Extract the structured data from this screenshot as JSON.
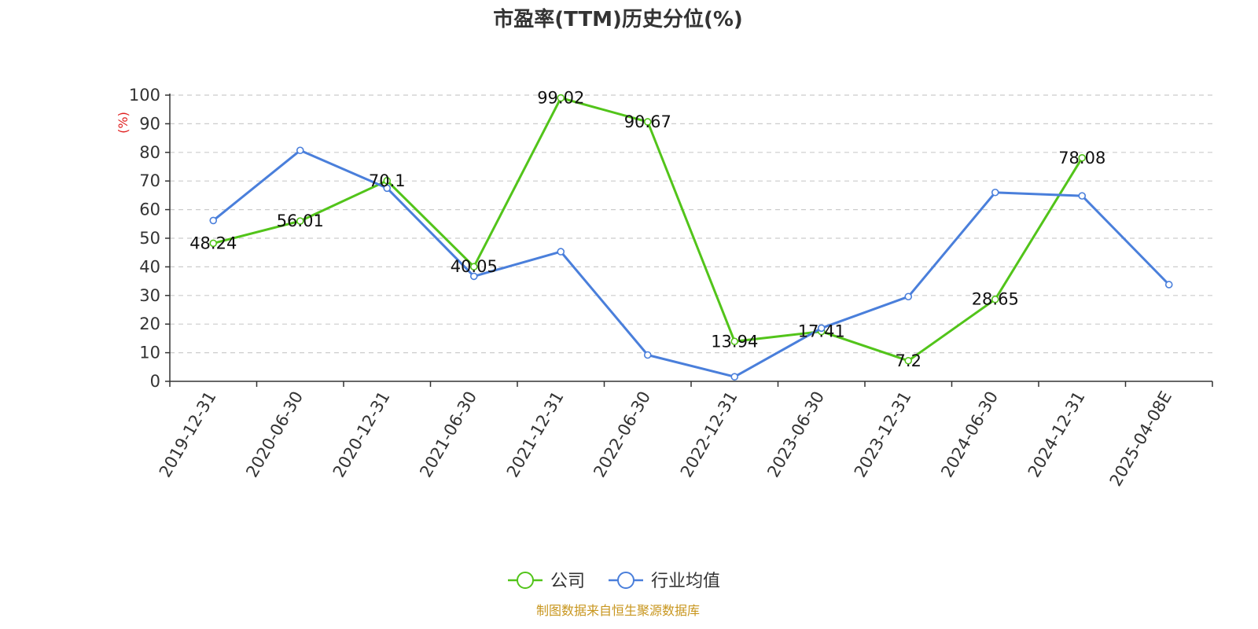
{
  "chart_data": {
    "type": "line",
    "title": "市盈率(TTM)历史分位(%)",
    "ylabel": "(%)",
    "ylim": [
      0,
      100
    ],
    "yticks": [
      0,
      10,
      20,
      30,
      40,
      50,
      60,
      70,
      80,
      90,
      100
    ],
    "grid": true,
    "legend_position": "bottom",
    "categories": [
      "2019-12-31",
      "2020-06-30",
      "2020-12-31",
      "2021-06-30",
      "2021-12-31",
      "2022-06-30",
      "2022-12-31",
      "2023-06-30",
      "2023-12-31",
      "2024-06-30",
      "2024-12-31",
      "2025-04-08E"
    ],
    "series": [
      {
        "name": "公司",
        "color": "#52c41a",
        "values": [
          48.24,
          56.01,
          70.1,
          40.05,
          99.02,
          90.67,
          13.94,
          17.41,
          7.2,
          28.65,
          78.08,
          null
        ],
        "labels": [
          "48.24",
          "56.01",
          "70.1",
          "40.05",
          "99.02",
          "90.67",
          "13.94",
          "17.41",
          "7.2",
          "28.65",
          "78.08",
          ""
        ]
      },
      {
        "name": "行业均值",
        "color": "#4a7fdb",
        "values": [
          56.2,
          80.7,
          67.5,
          36.7,
          45.3,
          9.2,
          1.6,
          18.6,
          29.6,
          66.0,
          64.8,
          33.8
        ],
        "labels": null
      }
    ],
    "source": "制图数据来自恒生聚源数据库",
    "source_color": "#c8961e",
    "ylabel_color": "#e02020"
  }
}
